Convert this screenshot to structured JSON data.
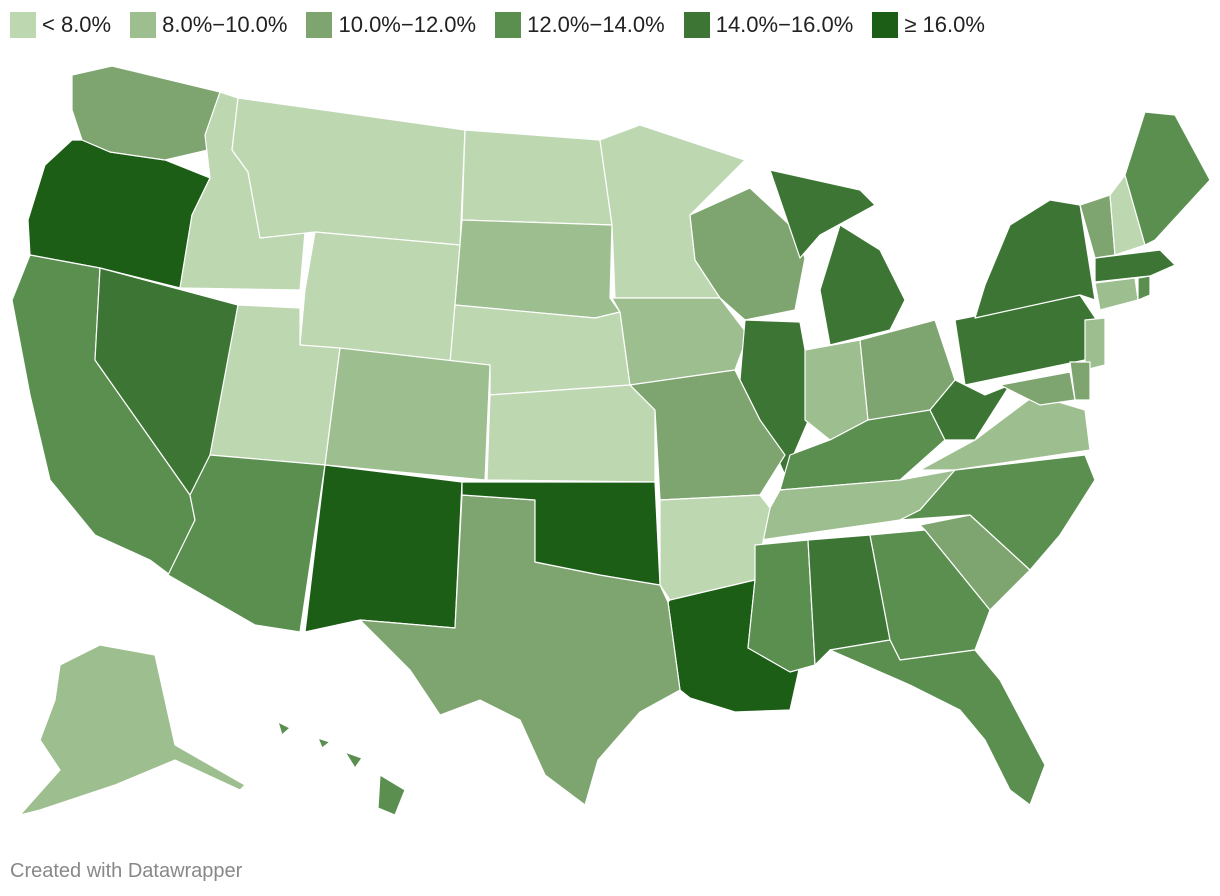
{
  "legend": {
    "items": [
      {
        "label": "< 8.0%",
        "color": "#bdd7b1"
      },
      {
        "label": "8.0%−10.0%",
        "color": "#9dbe8e"
      },
      {
        "label": "10.0%−12.0%",
        "color": "#7ea56f"
      },
      {
        "label": "12.0%−14.0%",
        "color": "#5b8f50"
      },
      {
        "label": "14.0%−16.0%",
        "color": "#3d7634"
      },
      {
        "label": "≥ 16.0%",
        "color": "#1c5e16"
      }
    ]
  },
  "map_data": {
    "type": "choropleth",
    "bins_by_state": {
      "OR": 5,
      "WA": 2,
      "ID": 0,
      "MT": 0,
      "WY": 0,
      "ND": 0,
      "SD": 1,
      "NE": 0,
      "KS": 0,
      "MN": 0,
      "IA": 1,
      "WI": 2,
      "MI": 4,
      "IL": 4,
      "IN": 1,
      "OH": 2,
      "KY": 3,
      "TN": 1,
      "MO": 2,
      "AR": 0,
      "LA": 5,
      "MS": 3,
      "AL": 4,
      "GA": 3,
      "FL": 3,
      "SC": 2,
      "NC": 3,
      "VA": 1,
      "WV": 4,
      "PA": 4,
      "NY": 4,
      "NJ": 1,
      "DE": 2,
      "MD": 2,
      "CT": 1,
      "RI": 3,
      "MA": 4,
      "VT": 2,
      "NH": 0,
      "ME": 3,
      "CA": 3,
      "NV": 4,
      "UT": 0,
      "AZ": 3,
      "CO": 1,
      "NM": 5,
      "TX": 2,
      "OK": 5,
      "AK": 1,
      "HI": 3
    }
  },
  "footer": {
    "credit": "Created with Datawrapper"
  }
}
